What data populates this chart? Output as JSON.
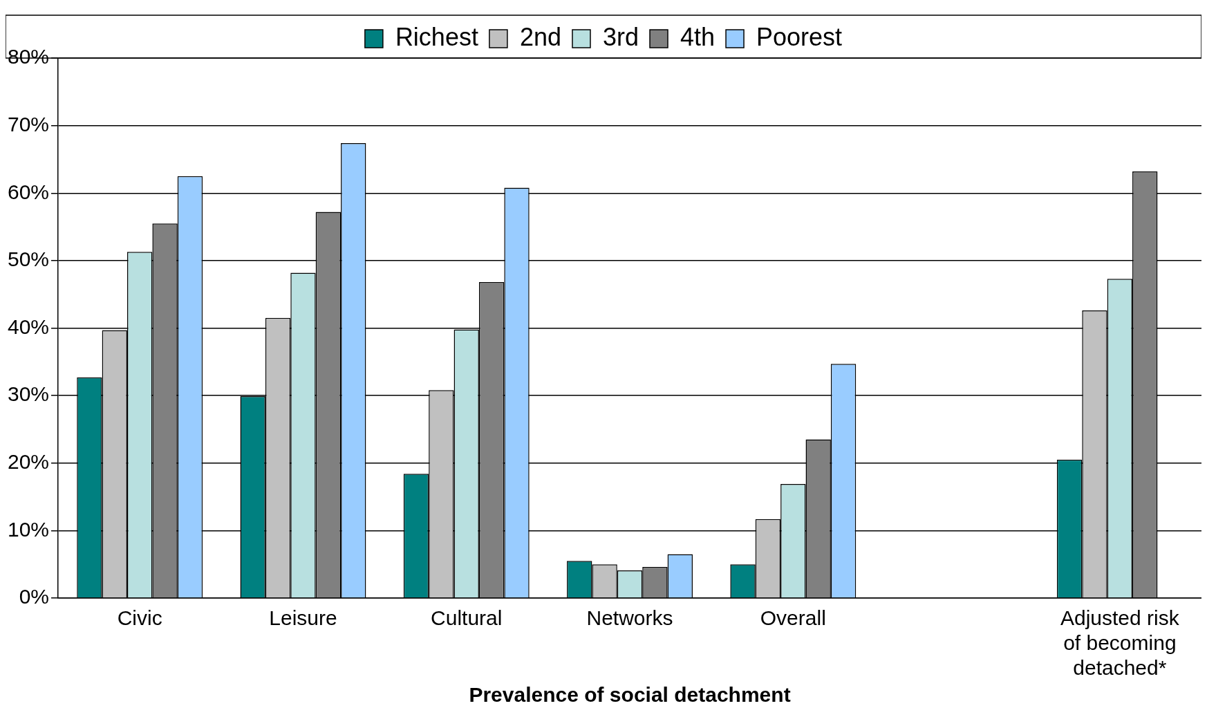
{
  "chart_data": {
    "type": "bar",
    "xlabel": "Prevalence of social detachment",
    "categories": [
      "Civic",
      "Leisure",
      "Cultural",
      "Networks",
      "Overall",
      null,
      "Adjusted risk of becoming detached*"
    ],
    "series": [
      {
        "name": "Richest",
        "color": "#008080",
        "values": [
          32.7,
          29.9,
          18.4,
          5.5,
          5.0,
          null,
          20.5
        ]
      },
      {
        "name": "2nd",
        "color": "#c0c0c0",
        "values": [
          39.7,
          41.5,
          30.8,
          5.0,
          11.7,
          null,
          42.6
        ]
      },
      {
        "name": "3rd",
        "color": "#b8e0e0",
        "values": [
          51.3,
          48.2,
          39.8,
          4.1,
          16.9,
          null,
          47.3
        ]
      },
      {
        "name": "4th",
        "color": "#808080",
        "values": [
          55.5,
          57.2,
          46.8,
          4.6,
          23.5,
          null,
          63.2
        ]
      },
      {
        "name": "Poorest",
        "color": "#99ccff",
        "values": [
          62.5,
          67.4,
          60.8,
          6.5,
          34.7,
          null,
          null
        ]
      }
    ],
    "ylim": [
      0,
      80
    ],
    "yticks": [
      {
        "value": 0,
        "label": "0%"
      },
      {
        "value": 10,
        "label": "10%"
      },
      {
        "value": 20,
        "label": "20%"
      },
      {
        "value": 30,
        "label": "30%"
      },
      {
        "value": 40,
        "label": "40%"
      },
      {
        "value": 50,
        "label": "50%"
      },
      {
        "value": 60,
        "label": "60%"
      },
      {
        "value": 70,
        "label": "70%"
      },
      {
        "value": 80,
        "label": "80%"
      }
    ],
    "grid": "y",
    "legend": "top"
  }
}
